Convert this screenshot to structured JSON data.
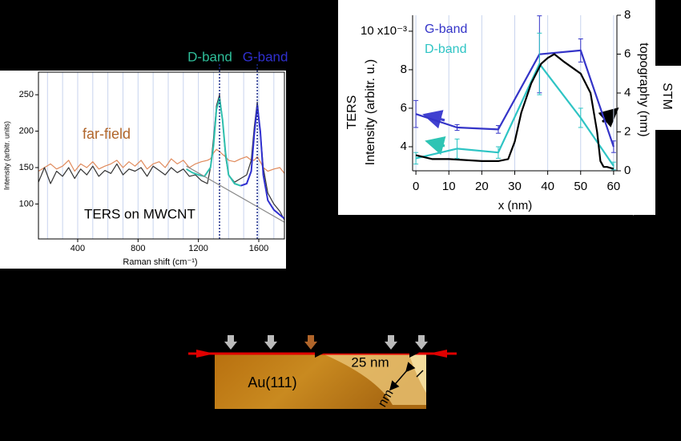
{
  "chart_data": [
    {
      "type": "line",
      "x_label": "Raman shift (cm⁻¹)",
      "y_label": "Intensity (arbitr. units)",
      "xlim": [
        140,
        1770
      ],
      "ylim": [
        52,
        281
      ],
      "xticks": [
        400,
        800,
        1200,
        1600
      ],
      "xminor_ticks": [
        200,
        300,
        500,
        600,
        700,
        900,
        1000,
        1100,
        1300,
        1400,
        1500,
        1700
      ],
      "yticks": [
        100,
        150,
        200,
        250
      ],
      "grid": true,
      "vlines": [
        1340,
        1590
      ],
      "band_labels": [
        {
          "text": "D-band",
          "color": "#2fbf9a"
        },
        {
          "text": "G-band",
          "color": "#3030d0"
        }
      ],
      "series": [
        {
          "name": "far-field",
          "color": "#e08a5c",
          "x": [
            140,
            180,
            220,
            260,
            300,
            340,
            380,
            420,
            460,
            500,
            540,
            580,
            620,
            660,
            700,
            740,
            780,
            820,
            860,
            900,
            940,
            980,
            1020,
            1060,
            1100,
            1140,
            1180,
            1220,
            1260,
            1280,
            1300,
            1320,
            1340,
            1360,
            1380,
            1400,
            1440,
            1480,
            1520,
            1550,
            1570,
            1590,
            1610,
            1630,
            1660,
            1700,
            1740,
            1770
          ],
          "values": [
            145,
            150,
            155,
            148,
            152,
            160,
            145,
            155,
            150,
            158,
            148,
            152,
            155,
            160,
            150,
            158,
            152,
            160,
            148,
            155,
            158,
            150,
            162,
            155,
            160,
            150,
            155,
            158,
            160,
            162,
            170,
            175,
            172,
            168,
            165,
            160,
            158,
            162,
            165,
            160,
            160,
            165,
            158,
            150,
            145,
            148,
            150,
            142
          ]
        },
        {
          "name": "TERS on MWCNT",
          "color": "#333333",
          "x": [
            140,
            180,
            220,
            260,
            300,
            340,
            380,
            420,
            460,
            500,
            540,
            580,
            620,
            660,
            700,
            740,
            780,
            820,
            860,
            900,
            940,
            980,
            1020,
            1060,
            1100,
            1140,
            1180,
            1220,
            1260,
            1280,
            1300,
            1320,
            1340,
            1360,
            1380,
            1400,
            1440,
            1480,
            1520,
            1550,
            1570,
            1590,
            1610,
            1630,
            1660,
            1700,
            1740,
            1770
          ],
          "values": [
            130,
            150,
            128,
            145,
            138,
            150,
            135,
            148,
            140,
            152,
            138,
            146,
            142,
            155,
            140,
            148,
            145,
            150,
            138,
            152,
            146,
            140,
            150,
            143,
            148,
            138,
            140,
            132,
            128,
            150,
            190,
            235,
            250,
            215,
            165,
            140,
            130,
            135,
            140,
            160,
            205,
            240,
            200,
            150,
            115,
            100,
            90,
            78
          ]
        },
        {
          "color": "#2fbfae",
          "x": [
            1120,
            1160,
            1200,
            1240,
            1280,
            1300,
            1320,
            1340,
            1360,
            1380,
            1400,
            1440,
            1480
          ],
          "values": [
            148,
            143,
            140,
            138,
            150,
            180,
            230,
            245,
            215,
            170,
            140,
            128,
            125
          ]
        },
        {
          "color": "#3030d0",
          "x": [
            1480,
            1520,
            1550,
            1570,
            1590,
            1610,
            1630,
            1660,
            1700,
            1740,
            1770
          ],
          "values": [
            125,
            128,
            145,
            195,
            235,
            200,
            140,
            105,
            92,
            85,
            80
          ]
        },
        {
          "color": "#888888",
          "x": [
            1120,
            1770
          ],
          "values": [
            152,
            75
          ]
        }
      ]
    },
    {
      "type": "line",
      "y_title": "TERS",
      "y_label": "Intensity (arbitr. u.)",
      "y2_title": "STM",
      "y2_label": "topography (nm)",
      "x_label": "x (nm)",
      "xlim": [
        -1,
        61
      ],
      "ylim": [
        2.75,
        10.83
      ],
      "y2lim": [
        0,
        8
      ],
      "xticks": [
        0,
        10,
        20,
        30,
        40,
        50,
        60
      ],
      "yticks": [
        4,
        6,
        8,
        {
          "value": 10,
          "label": "10 x10⁻³"
        }
      ],
      "y2ticks": [
        0,
        2,
        4,
        6,
        8
      ],
      "grid": true,
      "series": [
        {
          "name": "G-band",
          "color": "#3434c8",
          "x": [
            0,
            12.5,
            25,
            37.5,
            50,
            60
          ],
          "values": [
            5.7,
            5.0,
            4.9,
            8.8,
            9.0,
            4.0
          ],
          "errors": [
            0.7,
            0.15,
            0.2,
            2.0,
            0.6,
            0.3
          ]
        },
        {
          "name": "D-band",
          "color": "#2ec4c4",
          "x": [
            0,
            12.5,
            25,
            37.5,
            50,
            60
          ],
          "values": [
            3.4,
            3.9,
            3.7,
            8.3,
            5.5,
            3.0
          ],
          "errors": [
            0.3,
            0.5,
            0.3,
            1.6,
            0.5,
            0.2
          ]
        },
        {
          "axis": "y2",
          "color": "#000000",
          "x": [
            0,
            5,
            10,
            20,
            25,
            28,
            30,
            32,
            35,
            38,
            40,
            42,
            45,
            50,
            53,
            55,
            56,
            57,
            58,
            60
          ],
          "values": [
            0.8,
            0.6,
            0.6,
            0.5,
            0.5,
            0.6,
            1.5,
            3.0,
            4.5,
            5.5,
            5.8,
            6.0,
            5.6,
            5.0,
            4.0,
            2.0,
            0.5,
            0.2,
            0.2,
            0.1
          ]
        }
      ]
    }
  ],
  "stm_image": {
    "labels": [
      "Au(111)",
      "25 nm",
      "nm"
    ]
  }
}
